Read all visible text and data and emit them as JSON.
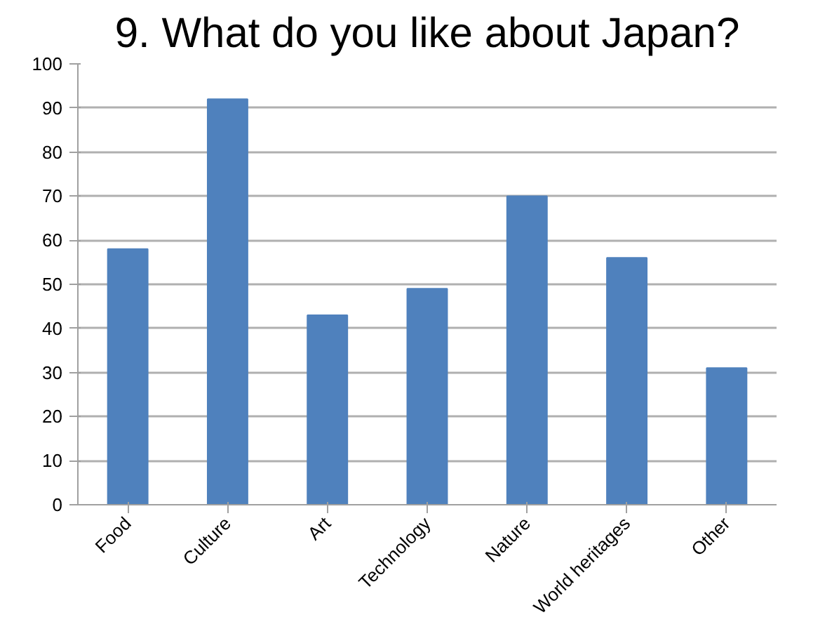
{
  "chart_data": {
    "type": "bar",
    "title": "9. What do you like about Japan?",
    "categories": [
      "Food",
      "Culture",
      "Art",
      "Technology",
      "Nature",
      "World heritages",
      "Other"
    ],
    "values": [
      58,
      92,
      43,
      49,
      70,
      56,
      31
    ],
    "color": "#4f81bd",
    "ylim": [
      0,
      100
    ],
    "yticks": [
      0,
      10,
      20,
      30,
      40,
      50,
      60,
      70,
      80,
      90,
      100
    ],
    "grid": "y"
  }
}
